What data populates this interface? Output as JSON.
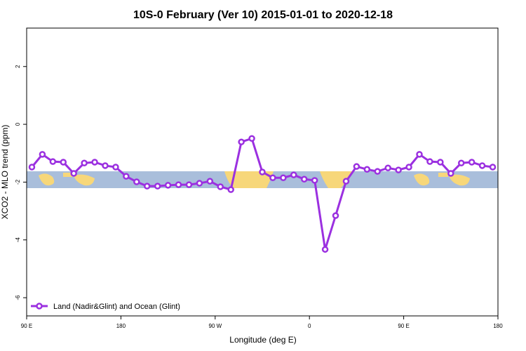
{
  "chart_data": {
    "type": "line",
    "title": "10S-0 February (Ver 10)   2015-01-01 to 2020-12-18",
    "x_label": "Longitude (deg E)",
    "y_label": "XCO2 - MLO trend (ppm)",
    "x": [
      95,
      105,
      115,
      125,
      135,
      145,
      155,
      165,
      175,
      185,
      195,
      205,
      215,
      225,
      235,
      245,
      255,
      265,
      275,
      285,
      295,
      305,
      315,
      325,
      335,
      345,
      355,
      365,
      375,
      385,
      395,
      405,
      415,
      425,
      435,
      445,
      455,
      465,
      475,
      485,
      495,
      505,
      515,
      525,
      535
    ],
    "series": [
      {
        "name": "Land (Nadir&Glint) and Ocean (Glint)",
        "color": "#9b30e0",
        "values": [
          -1.48,
          -1.04,
          -1.29,
          -1.31,
          -1.7,
          -1.34,
          -1.31,
          -1.43,
          -1.48,
          -1.8,
          -1.99,
          -2.14,
          -2.14,
          -2.11,
          -2.09,
          -2.09,
          -2.04,
          -1.97,
          -2.16,
          -2.26,
          -0.61,
          -0.49,
          -1.65,
          -1.85,
          -1.85,
          -1.75,
          -1.9,
          -1.94,
          -4.33,
          -3.16,
          -1.97,
          -1.46,
          -1.56,
          -1.63,
          -1.51,
          -1.58,
          -1.48,
          -1.04,
          -1.29,
          -1.31,
          -1.7,
          -1.34,
          -1.31,
          -1.43,
          -1.48
        ]
      }
    ],
    "xlim": [
      90,
      540
    ],
    "xticks": [
      {
        "value": 90,
        "label": "90 E"
      },
      180,
      {
        "value": 270,
        "label": "90 W"
      },
      {
        "value": 360,
        "label": "0"
      },
      {
        "value": 450,
        "label": "90 E"
      },
      {
        "value": 540,
        "label": "180"
      }
    ],
    "ylim": [
      -6.63,
      3.33
    ],
    "yticks": [
      2,
      0,
      -2,
      -4,
      -6
    ],
    "legend": "bottom-left"
  }
}
